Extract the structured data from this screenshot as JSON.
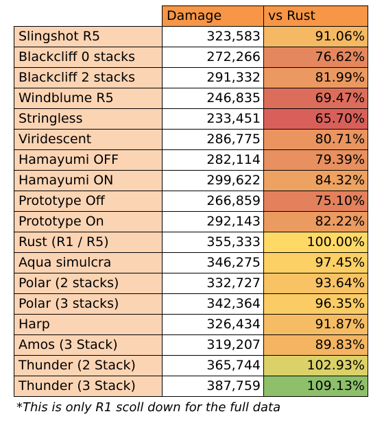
{
  "chart_data": {
    "type": "table",
    "columns": [
      "",
      "Damage",
      "vs Rust"
    ],
    "rows": [
      {
        "label": "Slingshot R5",
        "damage": "323,583",
        "vs_rust": "91.06%",
        "pct": 91.06
      },
      {
        "label": "Blackcliff 0 stacks",
        "damage": "272,266",
        "vs_rust": "76.62%",
        "pct": 76.62
      },
      {
        "label": "Blackcliff 2 stacks",
        "damage": "291,332",
        "vs_rust": "81.99%",
        "pct": 81.99
      },
      {
        "label": "Windblume R5",
        "damage": "246,835",
        "vs_rust": "69.47%",
        "pct": 69.47
      },
      {
        "label": "Stringless",
        "damage": "233,451",
        "vs_rust": "65.70%",
        "pct": 65.7
      },
      {
        "label": "Viridescent",
        "damage": "286,775",
        "vs_rust": "80.71%",
        "pct": 80.71
      },
      {
        "label": "Hamayumi OFF",
        "damage": "282,114",
        "vs_rust": "79.39%",
        "pct": 79.39
      },
      {
        "label": "Hamayumi ON",
        "damage": "299,622",
        "vs_rust": "84.32%",
        "pct": 84.32
      },
      {
        "label": "Prototype Off",
        "damage": "266,859",
        "vs_rust": "75.10%",
        "pct": 75.1
      },
      {
        "label": "Prototype On",
        "damage": "292,143",
        "vs_rust": "82.22%",
        "pct": 82.22
      },
      {
        "label": "Rust (R1 / R5)",
        "damage": "355,333",
        "vs_rust": "100.00%",
        "pct": 100.0
      },
      {
        "label": "Aqua simulcra",
        "damage": "346,275",
        "vs_rust": "97.45%",
        "pct": 97.45
      },
      {
        "label": "Polar (2 stacks)",
        "damage": "332,727",
        "vs_rust": "93.64%",
        "pct": 93.64
      },
      {
        "label": "Polar (3 stacks)",
        "damage": "342,364",
        "vs_rust": "96.35%",
        "pct": 96.35
      },
      {
        "label": "Harp",
        "damage": "326,434",
        "vs_rust": "91.87%",
        "pct": 91.87
      },
      {
        "label": "Amos (3 Stack)",
        "damage": "319,207",
        "vs_rust": "89.83%",
        "pct": 89.83
      },
      {
        "label": "Thunder (2 Stack)",
        "damage": "365,744",
        "vs_rust": "102.93%",
        "pct": 102.93
      },
      {
        "label": "Thunder (3 Stack)",
        "damage": "387,759",
        "vs_rust": "109.13%",
        "pct": 109.13
      }
    ],
    "color_scale": {
      "low": "#d9605a",
      "mid": "#ffd966",
      "high": "#8ebf6b",
      "min": 65.7,
      "mid_value": 100.0,
      "max": 109.13
    }
  },
  "colors": {
    "header": "#f79646",
    "label_cell": "#fbd4b4",
    "damage_cell": "#ffffff"
  },
  "footnote": "*This is only R1 scoll down for the full data"
}
